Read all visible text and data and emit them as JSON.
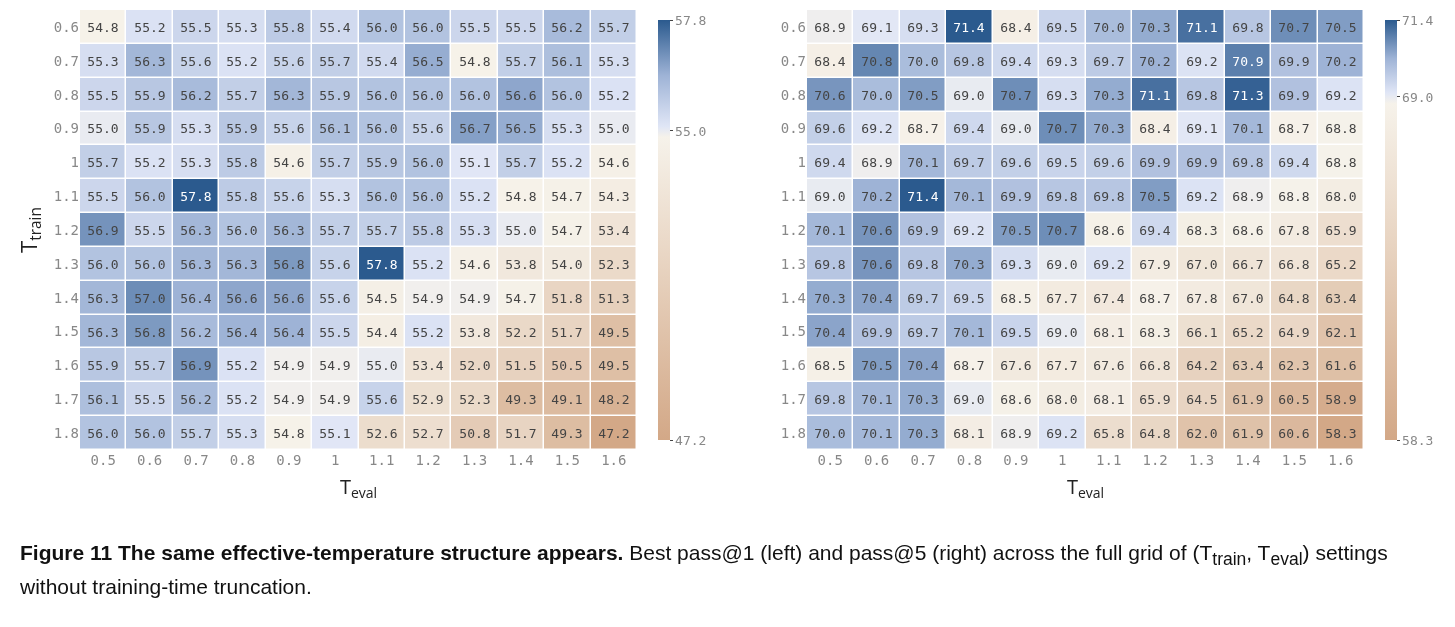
{
  "chart_data": [
    {
      "type": "heatmap",
      "xlabel": "T$_{eval}$",
      "ylabel": "T$_{train}$",
      "categories": [
        "0.5",
        "0.6",
        "0.7",
        "0.8",
        "0.9",
        "1",
        "1.1",
        "1.2",
        "1.3",
        "1.4",
        "1.5",
        "1.6"
      ],
      "y_categories": [
        "0.6",
        "0.7",
        "0.8",
        "0.9",
        "1",
        "1.1",
        "1.2",
        "1.3",
        "1.4",
        "1.5",
        "1.6",
        "1.7",
        "1.8"
      ],
      "cells": [
        [
          54.8,
          55.2,
          55.5,
          55.3,
          55.8,
          55.4,
          56.0,
          56.0,
          55.5,
          55.5,
          56.2,
          55.7
        ],
        [
          55.3,
          56.3,
          55.6,
          55.2,
          55.6,
          55.7,
          55.4,
          56.5,
          54.8,
          55.7,
          56.1,
          55.3
        ],
        [
          55.5,
          55.9,
          56.2,
          55.7,
          56.3,
          55.9,
          56.0,
          56.0,
          56.0,
          56.6,
          56.0,
          55.2
        ],
        [
          55.0,
          55.9,
          55.3,
          55.9,
          55.6,
          56.1,
          56.0,
          55.6,
          56.7,
          56.5,
          55.3,
          55.0
        ],
        [
          55.7,
          55.2,
          55.3,
          55.8,
          54.6,
          55.7,
          55.9,
          56.0,
          55.1,
          55.7,
          55.2,
          54.6
        ],
        [
          55.5,
          56.0,
          57.8,
          55.8,
          55.6,
          55.3,
          56.0,
          56.0,
          55.2,
          54.8,
          54.7,
          54.3
        ],
        [
          56.9,
          55.5,
          56.3,
          56.0,
          56.3,
          55.7,
          55.7,
          55.8,
          55.3,
          55.0,
          54.7,
          53.4
        ],
        [
          56.0,
          56.0,
          56.3,
          56.3,
          56.8,
          55.6,
          57.8,
          55.2,
          54.6,
          53.8,
          54.0,
          52.3
        ],
        [
          56.3,
          57.0,
          56.4,
          56.6,
          56.6,
          55.6,
          54.5,
          54.9,
          54.9,
          54.7,
          51.8,
          51.3
        ],
        [
          56.3,
          56.8,
          56.2,
          56.4,
          56.4,
          55.5,
          54.4,
          55.2,
          53.8,
          52.2,
          51.7,
          49.5
        ],
        [
          55.9,
          55.7,
          56.9,
          55.2,
          54.9,
          54.9,
          55.0,
          53.4,
          52.0,
          51.5,
          50.5,
          49.5
        ],
        [
          56.1,
          55.5,
          56.2,
          55.2,
          54.9,
          54.9,
          55.6,
          52.9,
          52.3,
          49.3,
          49.1,
          48.2
        ],
        [
          56.0,
          56.0,
          55.7,
          55.3,
          54.8,
          55.1,
          52.6,
          52.7,
          50.8,
          51.7,
          49.3,
          47.2
        ]
      ],
      "cell_labels": [
        [
          "54.8",
          "55.2",
          "55.5",
          "55.3",
          "55.8",
          "55.4",
          "56.0",
          "56.0",
          "55.5",
          "55.5",
          "56.2",
          "55.7"
        ],
        [
          "55.3",
          "56.3",
          "55.6",
          "55.2",
          "55.6",
          "55.7",
          "55.4",
          "56.5",
          "54.8",
          "55.7",
          "56.1",
          "55.3"
        ],
        [
          "55.5",
          "55.9",
          "56.2",
          "55.7",
          "56.3",
          "55.9",
          "56.0",
          "56.0",
          "56.0",
          "56.6",
          "56.0",
          "55.2"
        ],
        [
          "55.0",
          "55.9",
          "55.3",
          "55.9",
          "55.6",
          "56.1",
          "56.0",
          "55.6",
          "56.7",
          "56.5",
          "55.3",
          "55.0"
        ],
        [
          "55.7",
          "55.2",
          "55.3",
          "55.8",
          "54.6",
          "55.7",
          "55.9",
          "56.0",
          "55.1",
          "55.7",
          "55.2",
          "54.6"
        ],
        [
          "55.5",
          "56.0",
          "57.8",
          "55.8",
          "55.6",
          "55.3",
          "56.0",
          "56.0",
          "55.2",
          "54.8",
          "54.7",
          "54.3"
        ],
        [
          "56.9",
          "55.5",
          "56.3",
          "56.0",
          "56.3",
          "55.7",
          "55.7",
          "55.8",
          "55.3",
          "55.0",
          "54.7",
          "53.4"
        ],
        [
          "56.0",
          "56.0",
          "56.3",
          "56.3",
          "56.8",
          "55.6",
          "57.8",
          "55.2",
          "54.6",
          "53.8",
          "54.0",
          "52.3"
        ],
        [
          "56.3",
          "57.0",
          "56.4",
          "56.6",
          "56.6",
          "55.6",
          "54.5",
          "54.9",
          "54.9",
          "54.7",
          "51.8",
          "51.3"
        ],
        [
          "56.3",
          "56.8",
          "56.2",
          "56.4",
          "56.4",
          "55.5",
          "54.4",
          "55.2",
          "53.8",
          "52.2",
          "51.7",
          "49.5"
        ],
        [
          "55.9",
          "55.7",
          "56.9",
          "55.2",
          "54.9",
          "54.9",
          "55.0",
          "53.4",
          "52.0",
          "51.5",
          "50.5",
          "49.5"
        ],
        [
          "56.1",
          "55.5",
          "56.2",
          "55.2",
          "54.9",
          "54.9",
          "55.6",
          "52.9",
          "52.3",
          "49.3",
          "49.1",
          "48.2"
        ],
        [
          "56.0",
          "56.0",
          "55.7",
          "55.3",
          "54.8",
          "55.1",
          "52.6",
          "52.7",
          "50.8",
          "51.7",
          "49.3",
          "47.2"
        ]
      ],
      "clim": [
        47.2,
        57.8
      ],
      "cticks": [
        47.2,
        {
          "value": 55,
          "label": "55.0"
        },
        57.8
      ],
      "data_labels": true,
      "annotations": [
        "Figure 11  The same effective-temperature structure appears.",
        "Best pass@1 (left) and pass@5 (right) across the full grid of (T$_{train}$, T$_{eval}$) settings without training-time truncation."
      ]
    },
    {
      "type": "heatmap",
      "xlabel": "T$_{eval}$",
      "categories": [
        "0.5",
        "0.6",
        "0.7",
        "0.8",
        "0.9",
        "1",
        "1.1",
        "1.2",
        "1.3",
        "1.4",
        "1.5",
        "1.6"
      ],
      "y_categories": [
        "0.6",
        "0.7",
        "0.8",
        "0.9",
        "1",
        "1.1",
        "1.2",
        "1.3",
        "1.4",
        "1.5",
        "1.6",
        "1.7",
        "1.8"
      ],
      "cells": [
        [
          68.9,
          69.1,
          69.3,
          71.4,
          68.4,
          69.5,
          70.0,
          70.3,
          71.1,
          69.8,
          70.7,
          70.5
        ],
        [
          68.4,
          70.8,
          70.0,
          69.8,
          69.4,
          69.3,
          69.7,
          70.2,
          69.2,
          70.9,
          69.9,
          70.2
        ],
        [
          70.6,
          70.0,
          70.5,
          69.0,
          70.7,
          69.3,
          70.3,
          71.1,
          69.8,
          71.3,
          69.9,
          69.2
        ],
        [
          69.6,
          69.2,
          68.7,
          69.4,
          69.0,
          70.7,
          70.3,
          68.4,
          69.1,
          70.1,
          68.7,
          68.8
        ],
        [
          69.4,
          68.9,
          70.1,
          69.7,
          69.6,
          69.5,
          69.6,
          69.9,
          69.9,
          69.8,
          69.4,
          68.8
        ],
        [
          69.0,
          70.2,
          71.4,
          70.1,
          69.9,
          69.8,
          69.8,
          70.5,
          69.2,
          68.9,
          68.8,
          68.0
        ],
        [
          70.1,
          70.6,
          69.9,
          69.2,
          70.5,
          70.7,
          68.6,
          69.4,
          68.3,
          68.6,
          67.8,
          65.9
        ],
        [
          69.8,
          70.6,
          69.8,
          70.3,
          69.3,
          69.0,
          69.2,
          67.9,
          67.0,
          66.7,
          66.8,
          65.2
        ],
        [
          70.3,
          70.4,
          69.7,
          69.5,
          68.5,
          67.7,
          67.4,
          68.7,
          67.8,
          67.0,
          64.8,
          63.4
        ],
        [
          70.4,
          69.9,
          69.7,
          70.1,
          69.5,
          69.0,
          68.1,
          68.3,
          66.1,
          65.2,
          64.9,
          62.1
        ],
        [
          68.5,
          70.5,
          70.4,
          68.7,
          67.6,
          67.7,
          67.6,
          66.8,
          64.2,
          63.4,
          62.3,
          61.6
        ],
        [
          69.8,
          70.1,
          70.3,
          69.0,
          68.6,
          68.0,
          68.1,
          65.9,
          64.5,
          61.9,
          60.5,
          58.9
        ],
        [
          70.0,
          70.1,
          70.3,
          68.1,
          68.9,
          69.2,
          65.8,
          64.8,
          62.0,
          61.9,
          60.6,
          58.3
        ]
      ],
      "cell_labels": [
        [
          "68.9",
          "69.1",
          "69.3",
          "71.4",
          "68.4",
          "69.5",
          "70.0",
          "70.3",
          "71.1",
          "69.8",
          "70.7",
          "70.5"
        ],
        [
          "68.4",
          "70.8",
          "70.0",
          "69.8",
          "69.4",
          "69.3",
          "69.7",
          "70.2",
          "69.2",
          "70.9",
          "69.9",
          "70.2"
        ],
        [
          "70.6",
          "70.0",
          "70.5",
          "69.0",
          "70.7",
          "69.3",
          "70.3",
          "71.1",
          "69.8",
          "71.3",
          "69.9",
          "69.2"
        ],
        [
          "69.6",
          "69.2",
          "68.7",
          "69.4",
          "69.0",
          "70.7",
          "70.3",
          "68.4",
          "69.1",
          "70.1",
          "68.7",
          "68.8"
        ],
        [
          "69.4",
          "68.9",
          "70.1",
          "69.7",
          "69.6",
          "69.5",
          "69.6",
          "69.9",
          "69.9",
          "69.8",
          "69.4",
          "68.8"
        ],
        [
          "69.0",
          "70.2",
          "71.4",
          "70.1",
          "69.9",
          "69.8",
          "69.8",
          "70.5",
          "69.2",
          "68.9",
          "68.8",
          "68.0"
        ],
        [
          "70.1",
          "70.6",
          "69.9",
          "69.2",
          "70.5",
          "70.7",
          "68.6",
          "69.4",
          "68.3",
          "68.6",
          "67.8",
          "65.9"
        ],
        [
          "69.8",
          "70.6",
          "69.8",
          "70.3",
          "69.3",
          "69.0",
          "69.2",
          "67.9",
          "67.0",
          "66.7",
          "66.8",
          "65.2"
        ],
        [
          "70.3",
          "70.4",
          "69.7",
          "69.5",
          "68.5",
          "67.7",
          "67.4",
          "68.7",
          "67.8",
          "67.0",
          "64.8",
          "63.4"
        ],
        [
          "70.4",
          "69.9",
          "69.7",
          "70.1",
          "69.5",
          "69.0",
          "68.1",
          "68.3",
          "66.1",
          "65.2",
          "64.9",
          "62.1"
        ],
        [
          "68.5",
          "70.5",
          "70.4",
          "68.7",
          "67.6",
          "67.7",
          "67.6",
          "66.8",
          "64.2",
          "63.4",
          "62.3",
          "61.6"
        ],
        [
          "69.8",
          "70.1",
          "70.3",
          "69.0",
          "68.6",
          "68.0",
          "68.1",
          "65.9",
          "64.5",
          "61.9",
          "60.5",
          "58.9"
        ],
        [
          "70.0",
          "70.1",
          "70.3",
          "68.1",
          "68.9",
          "69.2",
          "65.8",
          "64.8",
          "62.0",
          "61.9",
          "60.6",
          "58.3"
        ]
      ],
      "clim": [
        58.3,
        71.4
      ],
      "cticks": [
        58.3,
        {
          "value": 69,
          "label": "69.0"
        },
        71.4
      ],
      "data_labels": true
    }
  ]
}
